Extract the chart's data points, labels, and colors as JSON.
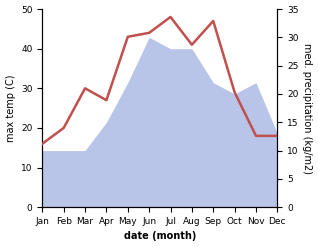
{
  "months": [
    "Jan",
    "Feb",
    "Mar",
    "Apr",
    "May",
    "Jun",
    "Jul",
    "Aug",
    "Sep",
    "Oct",
    "Nov",
    "Dec"
  ],
  "x": [
    1,
    2,
    3,
    4,
    5,
    6,
    7,
    8,
    9,
    10,
    11,
    12
  ],
  "temp": [
    16,
    20,
    30,
    27,
    43,
    44,
    48,
    41,
    47,
    29,
    18,
    18
  ],
  "precip": [
    10,
    10,
    10,
    15,
    22,
    30,
    28,
    28,
    22,
    20,
    22,
    13
  ],
  "temp_color": "#c0504d",
  "precip_fill_color": "#b8c4e8",
  "left_ylabel": "max temp (C)",
  "right_ylabel": "med. precipitation (kg/m2)",
  "xlabel": "date (month)",
  "left_ylim": [
    0,
    50
  ],
  "right_ylim": [
    0,
    35
  ],
  "left_yticks": [
    0,
    10,
    20,
    30,
    40,
    50
  ],
  "right_yticks": [
    0,
    5,
    10,
    15,
    20,
    25,
    30,
    35
  ],
  "label_fontsize": 7,
  "tick_fontsize": 6.5,
  "line_width": 1.8,
  "fig_width": 3.18,
  "fig_height": 2.47,
  "dpi": 100
}
